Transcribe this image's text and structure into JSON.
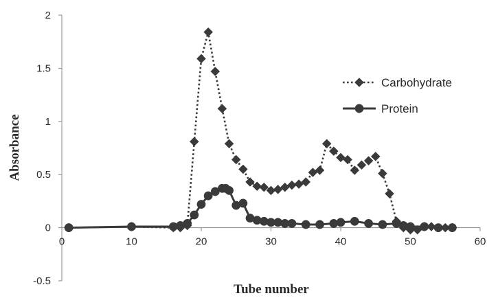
{
  "chart_data": {
    "type": "line",
    "title": "",
    "xlabel": "Tube number",
    "ylabel": "Absorbance",
    "xlim": [
      0,
      60
    ],
    "ylim": [
      -0.5,
      2
    ],
    "xticks": [
      0,
      10,
      20,
      30,
      40,
      50,
      60
    ],
    "yticks": [
      -0.5,
      0,
      0.5,
      1,
      1.5,
      2
    ],
    "xtick_labels": [
      "0",
      "10",
      "20",
      "30",
      "40",
      "50",
      "60"
    ],
    "ytick_labels": [
      "-0.5",
      "0",
      "0.5",
      "1",
      "1.5",
      "2"
    ],
    "grid": false,
    "legend_position": "right",
    "series": [
      {
        "name": "Carbohydrate",
        "line_style": "dotted",
        "marker": "diamond",
        "color": "#3a3a3a",
        "x": [
          1,
          10,
          16,
          17,
          18,
          19,
          20,
          21,
          22,
          23,
          24,
          25,
          26,
          27,
          28,
          29,
          30,
          31,
          32,
          33,
          34,
          35,
          36,
          37,
          38,
          39,
          40,
          41,
          42,
          43,
          44,
          45,
          46,
          47,
          48,
          49,
          50,
          51,
          52,
          53,
          55,
          56
        ],
        "y": [
          0,
          0.01,
          0,
          0,
          0.02,
          0.81,
          1.59,
          1.84,
          1.47,
          1.12,
          0.79,
          0.64,
          0.55,
          0.43,
          0.39,
          0.38,
          0.35,
          0.36,
          0.38,
          0.4,
          0.41,
          0.43,
          0.52,
          0.54,
          0.79,
          0.72,
          0.66,
          0.64,
          0.54,
          0.59,
          0.63,
          0.67,
          0.51,
          0.32,
          0.06,
          0,
          -0.02,
          -0.02,
          0.01,
          0.01,
          0,
          0
        ]
      },
      {
        "name": "Protein",
        "line_style": "solid",
        "marker": "circle",
        "color": "#3a3a3a",
        "x": [
          1,
          10,
          16,
          17,
          18,
          19,
          20,
          21,
          22,
          23,
          23.5,
          24,
          25,
          26,
          27,
          28,
          29,
          30,
          31,
          32,
          33,
          35,
          37,
          39,
          40,
          42,
          44,
          46,
          48,
          49,
          50,
          52,
          54,
          56
        ],
        "y": [
          0,
          0.01,
          0.01,
          0.02,
          0.04,
          0.12,
          0.22,
          0.3,
          0.34,
          0.37,
          0.37,
          0.35,
          0.21,
          0.23,
          0.09,
          0.07,
          0.06,
          0.05,
          0.05,
          0.04,
          0.04,
          0.03,
          0.03,
          0.04,
          0.05,
          0.06,
          0.04,
          0.03,
          0.04,
          0.02,
          0.01,
          0.01,
          0,
          0
        ]
      }
    ]
  }
}
